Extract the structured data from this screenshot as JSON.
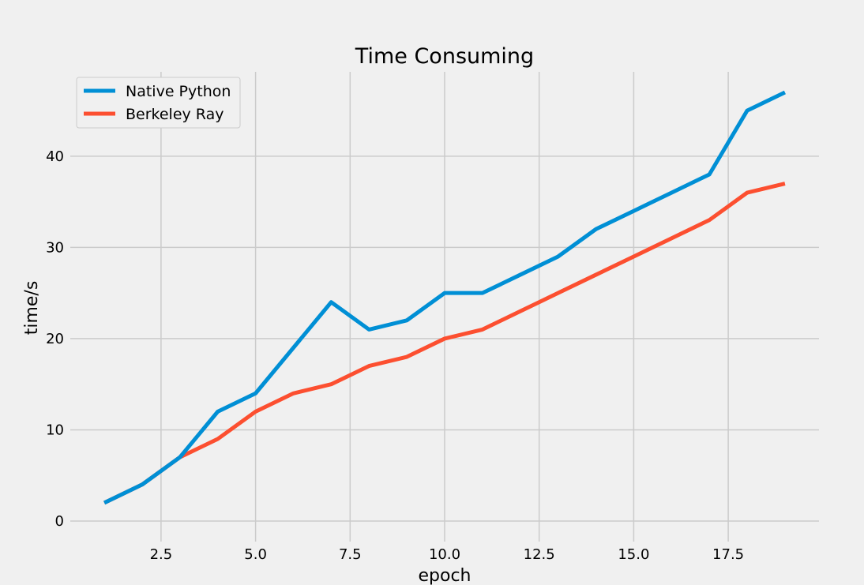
{
  "chart_data": {
    "type": "line",
    "title": "Time Consuming",
    "xlabel": "epoch",
    "ylabel": "time/s",
    "x": [
      1,
      2,
      3,
      4,
      5,
      6,
      7,
      8,
      9,
      10,
      11,
      12,
      13,
      14,
      15,
      16,
      17,
      18,
      19
    ],
    "series": [
      {
        "name": "Native Python",
        "color": "#008fd5",
        "values": [
          2,
          4,
          7,
          12,
          14,
          19,
          24,
          21,
          22,
          25,
          25,
          27,
          29,
          32,
          34,
          36,
          38,
          45,
          47
        ]
      },
      {
        "name": "Berkeley Ray",
        "color": "#fc4f30",
        "values": [
          2,
          4,
          7,
          9,
          12,
          14,
          15,
          17,
          18,
          20,
          21,
          23,
          25,
          27,
          29,
          31,
          33,
          36,
          37
        ]
      }
    ],
    "xlim": [
      0.1,
      19.9
    ],
    "ylim": [
      -2.25,
      49.25
    ],
    "xticks": [
      2.5,
      5.0,
      7.5,
      10.0,
      12.5,
      15.0,
      17.5
    ],
    "xtick_labels": [
      "2.5",
      "5.0",
      "7.5",
      "10.0",
      "12.5",
      "15.0",
      "17.5"
    ],
    "yticks": [
      0,
      10,
      20,
      30,
      40
    ],
    "ytick_labels": [
      "0",
      "10",
      "20",
      "30",
      "40"
    ],
    "grid": true,
    "legend": "top-left"
  }
}
